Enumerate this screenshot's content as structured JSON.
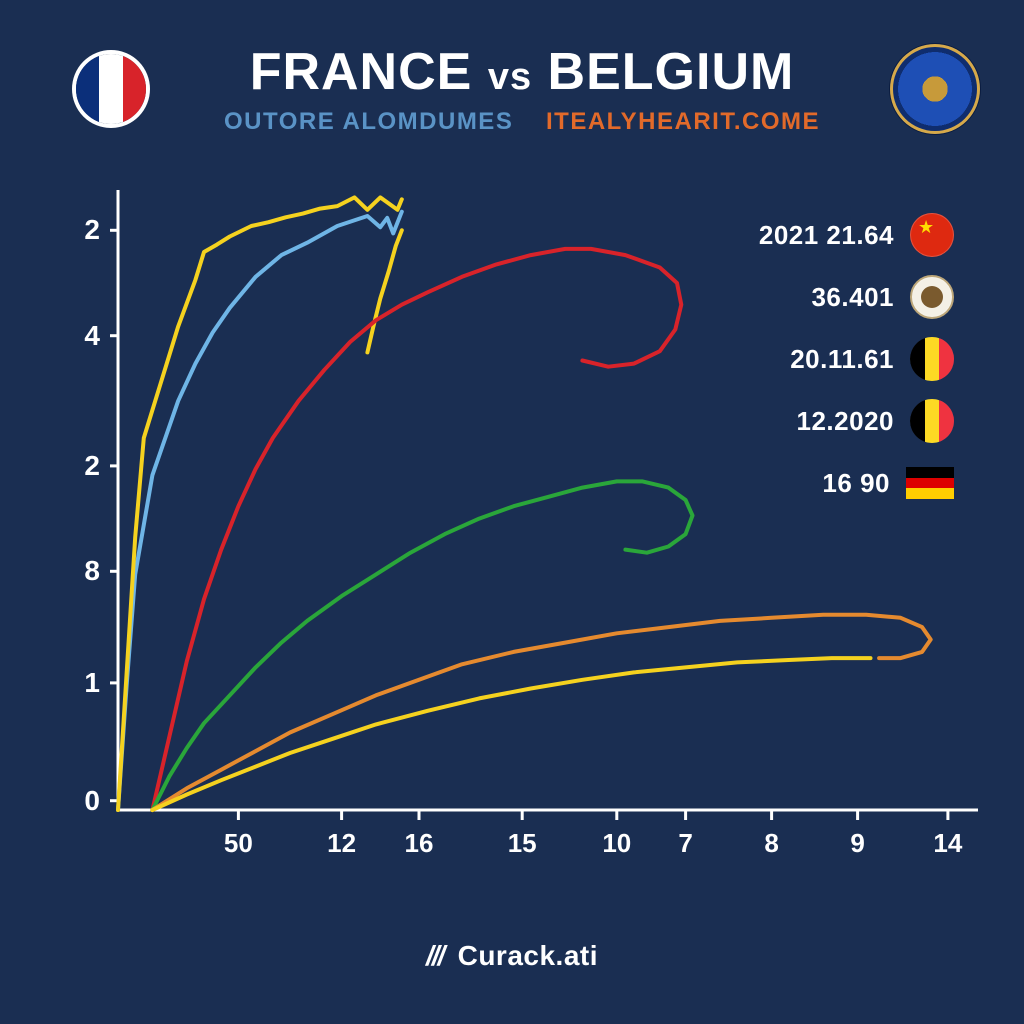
{
  "header": {
    "title_left": "FRANCE",
    "title_vs": "vs",
    "title_right": "BELGIUM",
    "subtitle_left": "OUTORE  ALOMDUMES",
    "subtitle_right": "ITEALYHEARIT.COME",
    "subtitle_left_color": "#5a93c6",
    "subtitle_right_color": "#e26a2a"
  },
  "france_flag": {
    "blue": "#0b2f7a",
    "white": "#ffffff",
    "red": "#d8232a"
  },
  "chart": {
    "type": "line",
    "background_color": "#1a2e52",
    "axis_color": "#ffffff",
    "axis_width": 3,
    "line_width": 4,
    "y_ticks": [
      "2",
      "4",
      "2",
      "8",
      "1",
      "0"
    ],
    "y_tick_positions": [
      0.065,
      0.235,
      0.445,
      0.615,
      0.795,
      0.985
    ],
    "x_ticks": [
      "50",
      "12",
      "16",
      "15",
      "10",
      "7",
      "8",
      "9",
      "14"
    ],
    "x_tick_positions": [
      0.14,
      0.26,
      0.35,
      0.47,
      0.58,
      0.66,
      0.76,
      0.86,
      0.965
    ],
    "series": [
      {
        "name": "blue",
        "color": "#6fb5e6",
        "points": [
          [
            0.0,
            1.0
          ],
          [
            0.01,
            0.8
          ],
          [
            0.02,
            0.62
          ],
          [
            0.03,
            0.54
          ],
          [
            0.04,
            0.46
          ],
          [
            0.055,
            0.4
          ],
          [
            0.07,
            0.34
          ],
          [
            0.09,
            0.28
          ],
          [
            0.11,
            0.23
          ],
          [
            0.13,
            0.19
          ],
          [
            0.16,
            0.14
          ],
          [
            0.19,
            0.105
          ],
          [
            0.22,
            0.085
          ],
          [
            0.255,
            0.058
          ],
          [
            0.29,
            0.042
          ],
          [
            0.305,
            0.06
          ],
          [
            0.313,
            0.045
          ],
          [
            0.32,
            0.07
          ],
          [
            0.33,
            0.035
          ]
        ]
      },
      {
        "name": "yellow_upper",
        "color": "#f5d21f",
        "points": [
          [
            0.0,
            1.0
          ],
          [
            0.01,
            0.78
          ],
          [
            0.02,
            0.56
          ],
          [
            0.03,
            0.4
          ],
          [
            0.05,
            0.31
          ],
          [
            0.07,
            0.22
          ],
          [
            0.09,
            0.145
          ],
          [
            0.1,
            0.1
          ],
          [
            0.115,
            0.088
          ],
          [
            0.13,
            0.075
          ],
          [
            0.155,
            0.058
          ],
          [
            0.175,
            0.052
          ],
          [
            0.195,
            0.044
          ],
          [
            0.215,
            0.038
          ],
          [
            0.235,
            0.03
          ],
          [
            0.255,
            0.026
          ],
          [
            0.275,
            0.012
          ],
          [
            0.29,
            0.032
          ],
          [
            0.305,
            0.012
          ],
          [
            0.325,
            0.032
          ],
          [
            0.33,
            0.015
          ]
        ]
      },
      {
        "name": "yellowtail",
        "color": "#f5d21f",
        "points": [
          [
            0.33,
            0.065
          ],
          [
            0.323,
            0.09
          ],
          [
            0.315,
            0.13
          ],
          [
            0.305,
            0.175
          ],
          [
            0.297,
            0.22
          ],
          [
            0.29,
            0.262
          ]
        ]
      },
      {
        "name": "red",
        "color": "#d8232a",
        "points": [
          [
            0.04,
            1.0
          ],
          [
            0.06,
            0.88
          ],
          [
            0.08,
            0.76
          ],
          [
            0.1,
            0.66
          ],
          [
            0.12,
            0.58
          ],
          [
            0.14,
            0.51
          ],
          [
            0.16,
            0.45
          ],
          [
            0.18,
            0.4
          ],
          [
            0.21,
            0.34
          ],
          [
            0.24,
            0.29
          ],
          [
            0.27,
            0.245
          ],
          [
            0.3,
            0.21
          ],
          [
            0.33,
            0.185
          ],
          [
            0.36,
            0.165
          ],
          [
            0.4,
            0.14
          ],
          [
            0.44,
            0.12
          ],
          [
            0.48,
            0.105
          ],
          [
            0.52,
            0.095
          ],
          [
            0.55,
            0.095
          ],
          [
            0.59,
            0.105
          ],
          [
            0.63,
            0.125
          ],
          [
            0.65,
            0.15
          ],
          [
            0.655,
            0.185
          ],
          [
            0.648,
            0.225
          ],
          [
            0.63,
            0.26
          ],
          [
            0.6,
            0.28
          ],
          [
            0.57,
            0.285
          ],
          [
            0.54,
            0.275
          ]
        ]
      },
      {
        "name": "green",
        "color": "#2aa63a",
        "points": [
          [
            0.04,
            1.0
          ],
          [
            0.06,
            0.945
          ],
          [
            0.08,
            0.9
          ],
          [
            0.1,
            0.86
          ],
          [
            0.13,
            0.815
          ],
          [
            0.16,
            0.77
          ],
          [
            0.19,
            0.73
          ],
          [
            0.22,
            0.695
          ],
          [
            0.26,
            0.655
          ],
          [
            0.3,
            0.62
          ],
          [
            0.34,
            0.585
          ],
          [
            0.38,
            0.555
          ],
          [
            0.42,
            0.53
          ],
          [
            0.46,
            0.51
          ],
          [
            0.5,
            0.495
          ],
          [
            0.54,
            0.48
          ],
          [
            0.58,
            0.47
          ],
          [
            0.61,
            0.47
          ],
          [
            0.64,
            0.48
          ],
          [
            0.66,
            0.5
          ],
          [
            0.668,
            0.525
          ],
          [
            0.66,
            0.555
          ],
          [
            0.64,
            0.575
          ],
          [
            0.615,
            0.585
          ],
          [
            0.59,
            0.58
          ]
        ]
      },
      {
        "name": "orange",
        "color": "#e58a2f",
        "points": [
          [
            0.04,
            1.0
          ],
          [
            0.08,
            0.965
          ],
          [
            0.12,
            0.935
          ],
          [
            0.16,
            0.905
          ],
          [
            0.2,
            0.875
          ],
          [
            0.25,
            0.845
          ],
          [
            0.3,
            0.815
          ],
          [
            0.35,
            0.79
          ],
          [
            0.4,
            0.765
          ],
          [
            0.46,
            0.745
          ],
          [
            0.52,
            0.73
          ],
          [
            0.58,
            0.715
          ],
          [
            0.64,
            0.705
          ],
          [
            0.7,
            0.695
          ],
          [
            0.76,
            0.69
          ],
          [
            0.82,
            0.685
          ],
          [
            0.87,
            0.685
          ],
          [
            0.91,
            0.69
          ],
          [
            0.935,
            0.705
          ],
          [
            0.945,
            0.725
          ],
          [
            0.935,
            0.745
          ],
          [
            0.91,
            0.755
          ],
          [
            0.885,
            0.755
          ]
        ]
      },
      {
        "name": "yellow_lower",
        "color": "#f5d21f",
        "points": [
          [
            0.04,
            1.0
          ],
          [
            0.08,
            0.975
          ],
          [
            0.12,
            0.952
          ],
          [
            0.16,
            0.93
          ],
          [
            0.2,
            0.908
          ],
          [
            0.25,
            0.885
          ],
          [
            0.3,
            0.862
          ],
          [
            0.36,
            0.84
          ],
          [
            0.42,
            0.82
          ],
          [
            0.48,
            0.804
          ],
          [
            0.54,
            0.79
          ],
          [
            0.6,
            0.778
          ],
          [
            0.66,
            0.77
          ],
          [
            0.72,
            0.762
          ],
          [
            0.78,
            0.758
          ],
          [
            0.83,
            0.755
          ],
          [
            0.875,
            0.755
          ]
        ]
      }
    ]
  },
  "legend": {
    "items": [
      {
        "value": "2021 21.64",
        "flag": "china"
      },
      {
        "value": "36.401",
        "flag": "mex"
      },
      {
        "value": "20.11.61",
        "flag": "bel_crest"
      },
      {
        "value": "12.2020",
        "flag": "bel"
      },
      {
        "value": "16 90",
        "flag": "germany"
      }
    ]
  },
  "footer": {
    "brand": "Curack.ati"
  }
}
